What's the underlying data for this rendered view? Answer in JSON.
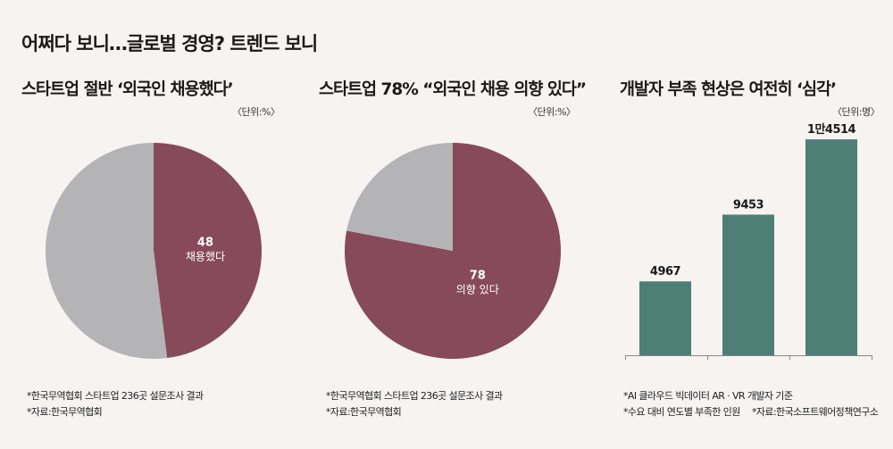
{
  "main_title": "어쩌다 보니…글로벌 경영? 트렌드 보니",
  "colors": {
    "wine": "#864a5b",
    "gray": "#b4b4b6",
    "teal": "#4d7f76",
    "bg": "#f6f3f1"
  },
  "panels": [
    {
      "title": "스타트업 절반 ‘외국인 채용했다’",
      "unit": "〈단위:%〉",
      "notes": [
        "*한국무역협회 스타트업 236곳 설문조사 결과",
        "*자료:한국무역협회"
      ]
    },
    {
      "title": "스타트업 78% “외국인 채용 의향 있다”",
      "unit": "〈단위:%〉",
      "notes": [
        "*한국무역협회 스타트업 236곳 설문조사 결과",
        "*자료:한국무역협회"
      ]
    },
    {
      "title": "개발자 부족 현상은 여전히 ‘심각’",
      "unit": "〈단위:명〉",
      "notes": [
        "*AI 클라우드 빅데이터 AR · VR 개발자 기준",
        "*수요 대비 연도별 부족한 인원",
        "*자료:한국소프트웨어정책연구소"
      ]
    }
  ],
  "chart_data": [
    {
      "type": "pie",
      "slices": [
        {
          "value": 48,
          "label": "채용했다",
          "color": "#864a5b"
        },
        {
          "value": 52,
          "color": "#b4b4b6"
        }
      ]
    },
    {
      "type": "pie",
      "slices": [
        {
          "value": 78,
          "label": "의향 있다",
          "color": "#864a5b"
        },
        {
          "value": 22,
          "color": "#b4b4b6"
        }
      ]
    },
    {
      "type": "bar",
      "values": [
        4967,
        9453,
        14514
      ],
      "value_labels": [
        "4967",
        "9453",
        "1만4514"
      ],
      "color": "#4d7f76",
      "ylim": [
        0,
        15000
      ]
    }
  ]
}
